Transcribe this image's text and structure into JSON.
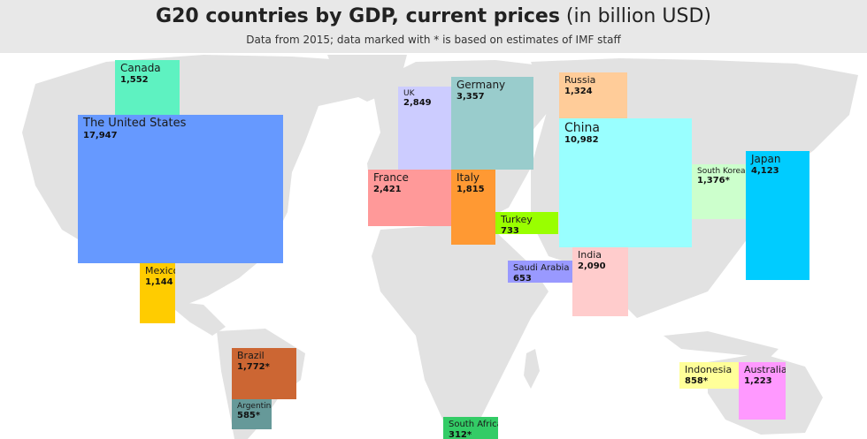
{
  "title_bold": "G20 countries by GDP, current prices",
  "title_rest": " (in billion USD)",
  "subtitle": "Data from 2015; data marked with * is based on estimates of IMF staff",
  "chart_data": {
    "type": "treemap-on-map",
    "title": "G20 countries by GDP, current prices (in billion USD)",
    "subtitle": "Data from 2015; data marked with * is based on estimates of IMF staff",
    "countries": [
      {
        "name": "Canada",
        "value": "1,552",
        "gdp": 1552,
        "color": "#5ef2c1"
      },
      {
        "name": "The United States",
        "value": "17,947",
        "gdp": 17947,
        "color": "#6699ff"
      },
      {
        "name": "Mexico",
        "value": "1,144",
        "gdp": 1144,
        "color": "#ffcc00"
      },
      {
        "name": "Brazil",
        "value": "1,772*",
        "gdp": 1772,
        "estimate": true,
        "color": "#cc6633"
      },
      {
        "name": "Argentina",
        "value": "585*",
        "gdp": 585,
        "estimate": true,
        "color": "#669999"
      },
      {
        "name": "UK",
        "value": "2,849",
        "gdp": 2849,
        "color": "#ccccff"
      },
      {
        "name": "Germany",
        "value": "3,357",
        "gdp": 3357,
        "color": "#99cccc"
      },
      {
        "name": "France",
        "value": "2,421",
        "gdp": 2421,
        "color": "#ff9999"
      },
      {
        "name": "Italy",
        "value": "1,815",
        "gdp": 1815,
        "color": "#ff9933"
      },
      {
        "name": "Turkey",
        "value": "733",
        "gdp": 733,
        "color": "#99ff00"
      },
      {
        "name": "Saudi Arabia",
        "value": "653",
        "gdp": 653,
        "color": "#9999ff"
      },
      {
        "name": "Russia",
        "value": "1,324",
        "gdp": 1324,
        "color": "#ffcc99"
      },
      {
        "name": "China",
        "value": "10,982",
        "gdp": 10982,
        "color": "#99ffff"
      },
      {
        "name": "India",
        "value": "2,090",
        "gdp": 2090,
        "color": "#ffcccc"
      },
      {
        "name": "South Korea",
        "value": "1,376*",
        "gdp": 1376,
        "estimate": true,
        "color": "#ccffcc"
      },
      {
        "name": "Japan",
        "value": "4,123",
        "gdp": 4123,
        "color": "#00ccff"
      },
      {
        "name": "Indonesia",
        "value": "858*",
        "gdp": 858,
        "estimate": true,
        "color": "#ffff99"
      },
      {
        "name": "Australia",
        "value": "1,223",
        "gdp": 1223,
        "color": "#ff99ff"
      },
      {
        "name": "South Africa",
        "value": "312*",
        "gdp": 312,
        "estimate": true,
        "color": "#33cc66"
      }
    ]
  }
}
